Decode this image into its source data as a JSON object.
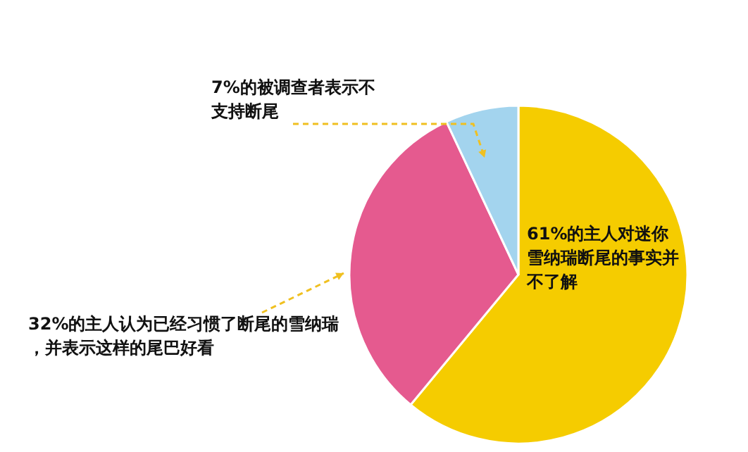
{
  "chart_data": {
    "type": "pie",
    "categories": [
      "61%的主人对迷你雪纳瑞断尾的事实并不了解",
      "32%的主人认为已经习惯了断尾的雪纳瑞，并表示这样的尾巴好看",
      "7%的被调查者表示不支持断尾"
    ],
    "values": [
      61,
      32,
      7
    ],
    "colors": [
      "#f5cc00",
      "#e55a8f",
      "#a3d4ee"
    ],
    "legend": false
  }
}
